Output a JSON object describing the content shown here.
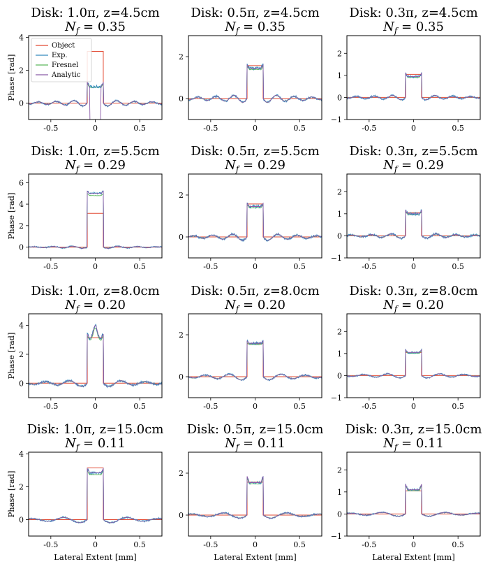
{
  "figure": {
    "x_label": "Lateral Extent [mm]",
    "y_label": "Phase [rad]"
  },
  "legend": [
    {
      "label": "Object",
      "color": "#e24a33"
    },
    {
      "label": "Exp.",
      "color": "#348abd"
    },
    {
      "label": "Fresnel",
      "color": "#5cb85c"
    },
    {
      "label": "Analytic",
      "color": "#8b5ca8"
    }
  ],
  "chart_data": [
    {
      "type": "line",
      "title": "Disk: 1.0π, z=4.5cm",
      "subtitle": "N_f = 0.35",
      "object_height": 3.1416,
      "disk_radius": 0.09,
      "xlim": [
        -0.75,
        0.75
      ],
      "ylim": [
        -1,
        4.1
      ],
      "xticks": [
        -0.5,
        0,
        0.5
      ],
      "xtick_labels": [
        "-0.5",
        "0",
        "0.5"
      ],
      "yticks": [
        0,
        2,
        4
      ],
      "ytick_labels": [
        "0",
        "2",
        "4"
      ],
      "plateau": 1.0,
      "edge_overshoot": 0.25,
      "ring_amplitude": 0.2,
      "ring_wavelength": 0.2,
      "noise": 0.05,
      "inner_dip": -1.0,
      "show_ylabel": true,
      "show_xlabel": false,
      "legend": true
    },
    {
      "type": "line",
      "title": "Disk: 0.5π, z=4.5cm",
      "subtitle": "N_f = 0.35",
      "object_height": 1.5708,
      "disk_radius": 0.09,
      "xlim": [
        -0.75,
        0.75
      ],
      "ylim": [
        -1,
        3
      ],
      "xticks": [
        -0.5,
        0,
        0.5
      ],
      "xtick_labels": [
        "-0.5",
        "0",
        "0.5"
      ],
      "yticks": [
        0,
        2
      ],
      "ytick_labels": [
        "0",
        "2"
      ],
      "plateau": 1.45,
      "edge_overshoot": 0.15,
      "ring_amplitude": 0.2,
      "ring_wavelength": 0.2,
      "noise": 0.05,
      "show_ylabel": false,
      "show_xlabel": false,
      "legend": false
    },
    {
      "type": "line",
      "title": "Disk: 0.3π, z=4.5cm",
      "subtitle": "N_f = 0.35",
      "object_height": 1.0472,
      "disk_radius": 0.09,
      "xlim": [
        -0.75,
        0.75
      ],
      "ylim": [
        -1,
        2.8
      ],
      "xticks": [
        -0.5,
        0,
        0.5
      ],
      "xtick_labels": [
        "-0.5",
        "0",
        "0.5"
      ],
      "yticks": [
        -1,
        0,
        1,
        2
      ],
      "ytick_labels": [
        "−1",
        "0",
        "1",
        "2"
      ],
      "plateau": 0.95,
      "edge_overshoot": 0.15,
      "ring_amplitude": 0.12,
      "ring_wavelength": 0.2,
      "noise": 0.04,
      "show_ylabel": false,
      "show_xlabel": false,
      "legend": false
    },
    {
      "type": "line",
      "title": "Disk: 1.0π, z=5.5cm",
      "subtitle": "N_f = 0.29",
      "object_height": 3.1416,
      "disk_radius": 0.09,
      "xlim": [
        -0.75,
        0.75
      ],
      "ylim": [
        -1,
        6.8
      ],
      "xticks": [
        -0.5,
        0,
        0.5
      ],
      "xtick_labels": [
        "-0.5",
        "0",
        "0.5"
      ],
      "yticks": [
        0,
        2,
        4,
        6
      ],
      "ytick_labels": [
        "0",
        "2",
        "4",
        "6"
      ],
      "plateau": 5.0,
      "edge_overshoot": 0.2,
      "ring_amplitude": 0.12,
      "ring_wavelength": 0.22,
      "noise": 0.06,
      "show_ylabel": true,
      "show_xlabel": false,
      "legend": false
    },
    {
      "type": "line",
      "title": "Disk: 0.5π, z=5.5cm",
      "subtitle": "N_f = 0.29",
      "object_height": 1.5708,
      "disk_radius": 0.09,
      "xlim": [
        -0.75,
        0.75
      ],
      "ylim": [
        -1,
        3
      ],
      "xticks": [
        -0.5,
        0,
        0.5
      ],
      "xtick_labels": [
        "-0.5",
        "0",
        "0.5"
      ],
      "yticks": [
        0,
        2
      ],
      "ytick_labels": [
        "0",
        "2"
      ],
      "plateau": 1.45,
      "edge_overshoot": 0.15,
      "ring_amplitude": 0.18,
      "ring_wavelength": 0.22,
      "noise": 0.05,
      "show_ylabel": false,
      "show_xlabel": false,
      "legend": false
    },
    {
      "type": "line",
      "title": "Disk: 0.3π, z=5.5cm",
      "subtitle": "N_f = 0.29",
      "object_height": 1.0472,
      "disk_radius": 0.09,
      "xlim": [
        -0.75,
        0.75
      ],
      "ylim": [
        -1,
        2.8
      ],
      "xticks": [
        -0.5,
        0,
        0.5
      ],
      "xtick_labels": [
        "-0.5",
        "0",
        "0.5"
      ],
      "yticks": [
        -1,
        0,
        1,
        2
      ],
      "ytick_labels": [
        "−1",
        "0",
        "1",
        "2"
      ],
      "plateau": 1.0,
      "edge_overshoot": 0.15,
      "ring_amplitude": 0.12,
      "ring_wavelength": 0.22,
      "noise": 0.05,
      "show_ylabel": false,
      "show_xlabel": false,
      "legend": false
    },
    {
      "type": "line",
      "title": "Disk: 1.0π, z=8.0cm",
      "subtitle": "N_f = 0.20",
      "object_height": 3.1416,
      "disk_radius": 0.09,
      "xlim": [
        -0.75,
        0.75
      ],
      "ylim": [
        -1,
        4.8
      ],
      "xticks": [
        -0.5,
        0,
        0.5
      ],
      "xtick_labels": [
        "-0.5",
        "0",
        "0.5"
      ],
      "yticks": [
        0,
        2,
        4
      ],
      "ytick_labels": [
        "0",
        "2",
        "4"
      ],
      "plateau": 3.1,
      "edge_overshoot": 0.3,
      "ring_amplitude": 0.25,
      "ring_wavelength": 0.27,
      "noise": 0.08,
      "center_bump": 0.9,
      "show_ylabel": true,
      "show_xlabel": false,
      "legend": false
    },
    {
      "type": "line",
      "title": "Disk: 0.5π, z=8.0cm",
      "subtitle": "N_f = 0.20",
      "object_height": 1.5708,
      "disk_radius": 0.09,
      "xlim": [
        -0.75,
        0.75
      ],
      "ylim": [
        -1,
        3
      ],
      "xticks": [
        -0.5,
        0,
        0.5
      ],
      "xtick_labels": [
        "-0.5",
        "0",
        "0.5"
      ],
      "yticks": [
        0,
        2
      ],
      "ytick_labels": [
        "0",
        "2"
      ],
      "plateau": 1.6,
      "edge_overshoot": 0.1,
      "ring_amplitude": 0.18,
      "ring_wavelength": 0.27,
      "noise": 0.04,
      "show_ylabel": false,
      "show_xlabel": false,
      "legend": false
    },
    {
      "type": "line",
      "title": "Disk: 0.3π, z=8.0cm",
      "subtitle": "N_f = 0.20",
      "object_height": 1.0472,
      "disk_radius": 0.09,
      "xlim": [
        -0.75,
        0.75
      ],
      "ylim": [
        -1,
        2.8
      ],
      "xticks": [
        -0.5,
        0,
        0.5
      ],
      "xtick_labels": [
        "-0.5",
        "0",
        "0.5"
      ],
      "yticks": [
        -1,
        0,
        1,
        2
      ],
      "ytick_labels": [
        "−1",
        "0",
        "1",
        "2"
      ],
      "plateau": 1.05,
      "edge_overshoot": 0.12,
      "ring_amplitude": 0.12,
      "ring_wavelength": 0.27,
      "noise": 0.03,
      "show_ylabel": false,
      "show_xlabel": false,
      "legend": false
    },
    {
      "type": "line",
      "title": "Disk: 1.0π, z=15.0cm",
      "subtitle": "N_f = 0.11",
      "object_height": 3.1416,
      "disk_radius": 0.09,
      "xlim": [
        -0.75,
        0.75
      ],
      "ylim": [
        -1,
        4.1
      ],
      "xticks": [
        -0.5,
        0,
        0.5
      ],
      "xtick_labels": [
        "-0.5",
        "0",
        "0.5"
      ],
      "yticks": [
        0,
        2,
        4
      ],
      "ytick_labels": [
        "0",
        "2",
        "4"
      ],
      "plateau": 2.85,
      "edge_overshoot": 0.25,
      "ring_amplitude": 0.22,
      "ring_wavelength": 0.36,
      "noise": 0.05,
      "show_ylabel": true,
      "show_xlabel": true,
      "legend": false
    },
    {
      "type": "line",
      "title": "Disk: 0.5π, z=15.0cm",
      "subtitle": "N_f = 0.11",
      "object_height": 1.5708,
      "disk_radius": 0.09,
      "xlim": [
        -0.75,
        0.75
      ],
      "ylim": [
        -1,
        3
      ],
      "xticks": [
        -0.5,
        0,
        0.5
      ],
      "xtick_labels": [
        "-0.5",
        "0",
        "0.5"
      ],
      "yticks": [
        0,
        2
      ],
      "ytick_labels": [
        "0",
        "2"
      ],
      "plateau": 1.55,
      "edge_overshoot": 0.3,
      "ring_amplitude": 0.17,
      "ring_wavelength": 0.36,
      "noise": 0.04,
      "show_ylabel": false,
      "show_xlabel": true,
      "legend": false
    },
    {
      "type": "line",
      "title": "Disk: 0.3π, z=15.0cm",
      "subtitle": "N_f = 0.11",
      "object_height": 1.0472,
      "disk_radius": 0.09,
      "xlim": [
        -0.75,
        0.75
      ],
      "ylim": [
        -1,
        2.8
      ],
      "xticks": [
        -0.5,
        0,
        0.5
      ],
      "xtick_labels": [
        "-0.5",
        "0",
        "0.5"
      ],
      "yticks": [
        -1,
        0,
        1,
        2
      ],
      "ytick_labels": [
        "−1",
        "0",
        "1",
        "2"
      ],
      "plateau": 1.1,
      "edge_overshoot": 0.25,
      "ring_amplitude": 0.12,
      "ring_wavelength": 0.36,
      "noise": 0.03,
      "show_ylabel": false,
      "show_xlabel": true,
      "legend": false
    }
  ]
}
